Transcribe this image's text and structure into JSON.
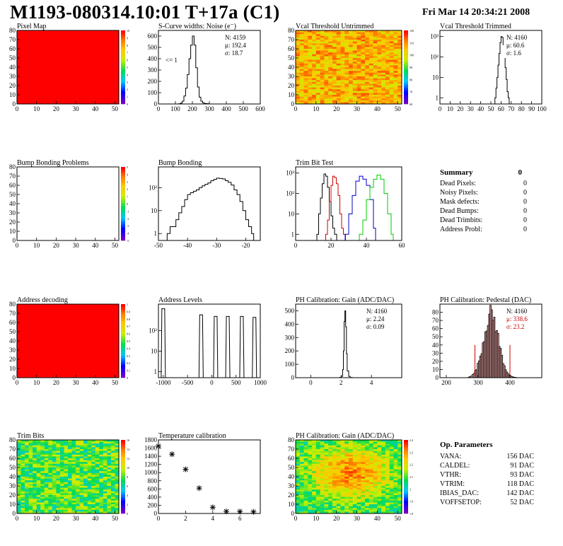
{
  "header": {
    "title": "M1193-080314.10:01 T+17a (C1)",
    "date": "Fri Mar 14 20:34:21 2008"
  },
  "colors": {
    "red": "#ff0000",
    "black": "#000000",
    "trim_red": "#cc0000",
    "trim_blue": "#0000cc",
    "trim_green": "#00cc00",
    "pedestal_fill": "#e0a0a0",
    "pedestal_line": "#cc0000"
  },
  "chart_data": [
    {
      "id": "pixel-map",
      "type": "heatmap",
      "title": "Pixel Map",
      "xlim": [
        0,
        52
      ],
      "ylim": [
        0,
        80
      ],
      "xticks": [
        0,
        10,
        20,
        30,
        40,
        50
      ],
      "yticks": [
        0,
        10,
        20,
        30,
        40,
        50,
        60,
        70,
        80
      ],
      "zticks": [
        "0",
        "1",
        "2",
        "3",
        "4",
        "5",
        "6",
        "7",
        "8",
        "9",
        "10"
      ],
      "fill": "uniform",
      "value": 10
    },
    {
      "id": "noise",
      "type": "line",
      "title": "S-Curve widths: Noise (e⁻)",
      "xlim": [
        0,
        600
      ],
      "ylim": [
        0,
        650
      ],
      "xticks": [
        0,
        100,
        200,
        300,
        400,
        500,
        600
      ],
      "yticks": [
        0,
        100,
        200,
        300,
        400,
        500,
        600
      ],
      "stats": [
        "N: 4159",
        "μ: 192.4",
        "σ: 18.7"
      ],
      "annotation": "<= 1",
      "x": [
        120,
        130,
        140,
        150,
        160,
        170,
        180,
        190,
        200,
        210,
        220,
        230,
        240,
        250,
        260,
        270,
        280,
        290,
        300
      ],
      "y": [
        2,
        8,
        25,
        70,
        140,
        260,
        400,
        520,
        600,
        520,
        320,
        150,
        60,
        25,
        10,
        5,
        3,
        2,
        0
      ]
    },
    {
      "id": "vcal-untrimmed",
      "type": "heatmap",
      "title": "Vcal Threshold Untrimmed",
      "xlim": [
        0,
        52
      ],
      "ylim": [
        0,
        80
      ],
      "xticks": [
        0,
        10,
        20,
        30,
        40,
        50
      ],
      "yticks": [
        0,
        10,
        20,
        30,
        40,
        50,
        60,
        70,
        80
      ],
      "zticks": [
        "60",
        "70",
        "80",
        "90",
        "100",
        "110",
        "120"
      ],
      "fill": "noise",
      "palette": "orange"
    },
    {
      "id": "vcal-trimmed",
      "type": "line",
      "title": "Vcal Threshold Trimmed",
      "xlim": [
        0,
        100
      ],
      "ylog": true,
      "ylim": [
        0.5,
        2000
      ],
      "xticks": [
        0,
        10,
        20,
        30,
        40,
        50,
        60,
        70,
        80,
        90,
        100
      ],
      "yticks": [
        "1",
        "10",
        "10²",
        "10³"
      ],
      "stats": [
        "N: 4160",
        "μ: 60.6",
        "σ:  1.6"
      ],
      "x": [
        54,
        55,
        56,
        57,
        58,
        59,
        60,
        61,
        62,
        63,
        64,
        65,
        66,
        67,
        68
      ],
      "y": [
        1,
        3,
        10,
        40,
        150,
        500,
        1000,
        900,
        400,
        120,
        30,
        8,
        2,
        1,
        0
      ]
    },
    {
      "id": "bump-problems",
      "type": "heatmap",
      "title": "Bump Bonding Problems",
      "xlim": [
        0,
        52
      ],
      "ylim": [
        0,
        80
      ],
      "xticks": [
        0,
        10,
        20,
        30,
        40,
        50
      ],
      "yticks": [
        0,
        10,
        20,
        30,
        40,
        50,
        60,
        70,
        80
      ],
      "zticks": [
        "-5",
        "-4",
        "-3",
        "-2",
        "-1",
        "0",
        "1",
        "2",
        "3",
        "4",
        "5"
      ],
      "fill": "empty"
    },
    {
      "id": "bump-bonding",
      "type": "line",
      "title": "Bump Bonding",
      "xlim": [
        -50,
        -15
      ],
      "ylog": true,
      "ylim": [
        0.5,
        800
      ],
      "xticks": [
        -50,
        -40,
        -30,
        -20
      ],
      "yticks": [
        "1",
        "10",
        "10²"
      ],
      "x": [
        -47,
        -46,
        -45,
        -44,
        -43,
        -42,
        -41,
        -40,
        -39,
        -38,
        -37,
        -36,
        -35,
        -34,
        -33,
        -32,
        -31,
        -30,
        -29,
        -28,
        -27,
        -26,
        -25,
        -24,
        -23,
        -22,
        -21,
        -20,
        -19,
        -18
      ],
      "y": [
        1,
        2,
        2,
        4,
        8,
        15,
        30,
        50,
        60,
        70,
        80,
        100,
        120,
        140,
        160,
        200,
        230,
        260,
        250,
        240,
        200,
        170,
        130,
        80,
        50,
        25,
        10,
        4,
        2,
        1
      ]
    },
    {
      "id": "trim-bit-test",
      "type": "line",
      "title": "Trim Bit Test",
      "xlim": [
        0,
        60
      ],
      "ylog": true,
      "ylim": [
        0.5,
        2000
      ],
      "xticks": [
        0,
        20,
        40,
        60
      ],
      "yticks": [
        "1",
        "10",
        "10²",
        "10³"
      ],
      "series": [
        {
          "color": "#000000",
          "x": [
            12,
            13,
            14,
            15,
            16,
            17,
            18,
            19,
            20,
            21,
            22
          ],
          "y": [
            1,
            10,
            60,
            300,
            900,
            700,
            200,
            40,
            8,
            2,
            1
          ]
        },
        {
          "color": "#cc0000",
          "x": [
            17,
            18,
            19,
            20,
            21,
            22,
            23,
            24,
            25,
            26,
            27
          ],
          "y": [
            1,
            5,
            40,
            250,
            700,
            600,
            300,
            80,
            10,
            2,
            1
          ]
        },
        {
          "color": "#0000cc",
          "x": [
            28,
            30,
            32,
            34,
            36,
            38,
            40,
            42,
            44
          ],
          "y": [
            1,
            10,
            80,
            400,
            700,
            500,
            250,
            50,
            2
          ]
        },
        {
          "color": "#00cc00",
          "x": [
            36,
            38,
            40,
            42,
            44,
            46,
            48,
            50,
            52,
            54
          ],
          "y": [
            1,
            5,
            50,
            200,
            500,
            800,
            500,
            100,
            10,
            1
          ]
        }
      ]
    },
    {
      "id": "address-decoding",
      "type": "heatmap",
      "title": "Address decoding",
      "xlim": [
        0,
        52
      ],
      "ylim": [
        0,
        80
      ],
      "xticks": [
        0,
        10,
        20,
        30,
        40,
        50
      ],
      "yticks": [
        0,
        10,
        20,
        30,
        40,
        50,
        60,
        70,
        80
      ],
      "zticks": [
        "0",
        "0.1",
        "0.2",
        "0.3",
        "0.4",
        "0.5",
        "0.6",
        "0.7",
        "0.8",
        "0.9",
        "1"
      ],
      "fill": "uniform",
      "value": 1
    },
    {
      "id": "address-levels",
      "type": "line",
      "title": "Address Levels",
      "xlim": [
        -1100,
        1000
      ],
      "ylog": true,
      "ylim": [
        0.5,
        2000
      ],
      "xticks": [
        -1000,
        -500,
        0,
        500,
        1000
      ],
      "yticks": [
        "1",
        "10",
        "10²"
      ],
      "peaks": [
        -1000,
        -220,
        80,
        330,
        620,
        880
      ],
      "peak_heights": [
        1200,
        600,
        500,
        500,
        500,
        450
      ]
    },
    {
      "id": "ph-gain",
      "type": "line",
      "title": "PH Calibration: Gain (ADC/DAC)",
      "xlim": [
        -1,
        6
      ],
      "ylim": [
        0,
        550
      ],
      "xticks": [
        0,
        2,
        4
      ],
      "yticks": [
        0,
        100,
        200,
        300,
        400,
        500
      ],
      "stats": [
        "N: 4160",
        "μ: 2.24",
        "σ: 0.09"
      ],
      "x": [
        1.9,
        2.0,
        2.1,
        2.15,
        2.2,
        2.25,
        2.3,
        2.35,
        2.4,
        2.5,
        2.6
      ],
      "y": [
        2,
        10,
        60,
        200,
        420,
        500,
        380,
        180,
        50,
        10,
        1
      ]
    },
    {
      "id": "ph-pedestal",
      "type": "bar",
      "title": "PH Calibration: Pedestal (DAC)",
      "xlim": [
        180,
        500
      ],
      "ylim": [
        0,
        90
      ],
      "xticks": [
        200,
        300,
        400
      ],
      "yticks": [
        0,
        10,
        20,
        30,
        40,
        50,
        60,
        70,
        80
      ],
      "stats": [
        "N: 4160",
        "μ: 338.6",
        "σ: 23.2"
      ],
      "mean": 338.6,
      "sigma": 23.2,
      "cut_lines": [
        290,
        400
      ]
    },
    {
      "id": "trim-bits",
      "type": "heatmap",
      "title": "Trim Bits",
      "xlim": [
        0,
        52
      ],
      "ylim": [
        0,
        80
      ],
      "xticks": [
        0,
        10,
        20,
        30,
        40,
        50
      ],
      "yticks": [
        0,
        10,
        20,
        30,
        40,
        50,
        60,
        70,
        80
      ],
      "zticks": [
        "0",
        "2",
        "4",
        "6",
        "8",
        "10",
        "12",
        "14",
        "16"
      ],
      "fill": "noise",
      "palette": "green"
    },
    {
      "id": "temp-calibration",
      "type": "scatter",
      "title": "Temperature calibration",
      "xlim": [
        0,
        7.5
      ],
      "ylim": [
        0,
        1800
      ],
      "xticks": [
        0,
        2,
        4,
        6
      ],
      "yticks": [
        0,
        200,
        400,
        600,
        800,
        1000,
        1200,
        1400,
        1600,
        1800
      ],
      "x": [
        0,
        1,
        2,
        3,
        4,
        5,
        6,
        7
      ],
      "y": [
        1650,
        1450,
        1080,
        620,
        150,
        50,
        45,
        40
      ]
    },
    {
      "id": "ph-gain-map",
      "type": "heatmap",
      "title": "PH Calibration: Gain (ADC/DAC)",
      "xlim": [
        0,
        52
      ],
      "ylim": [
        0,
        80
      ],
      "xticks": [
        0,
        10,
        20,
        30,
        40,
        50
      ],
      "yticks": [
        0,
        10,
        20,
        30,
        40,
        50,
        60,
        70,
        80
      ],
      "zticks": [
        "1.8",
        "1.9",
        "2",
        "2.1",
        "2.2",
        "2.3",
        "2.4"
      ],
      "fill": "noise",
      "palette": "center"
    }
  ],
  "summary": {
    "title": "Summary",
    "total": "0",
    "rows": [
      {
        "label": "Dead Pixels:",
        "value": "0"
      },
      {
        "label": "Noisy Pixels:",
        "value": "0"
      },
      {
        "label": "Mask defects:",
        "value": "0"
      },
      {
        "label": "Dead Bumps:",
        "value": "0"
      },
      {
        "label": "Dead Trimbits:",
        "value": "0"
      },
      {
        "label": "Address Probl:",
        "value": "0"
      }
    ]
  },
  "op_parameters": {
    "title": "Op. Parameters",
    "rows": [
      {
        "label": "VANA:",
        "value": "156 DAC"
      },
      {
        "label": "CALDEL:",
        "value": "91 DAC"
      },
      {
        "label": "VTHR:",
        "value": "93 DAC"
      },
      {
        "label": "VTRIM:",
        "value": "118 DAC"
      },
      {
        "label": "IBIAS_DAC:",
        "value": "142 DAC"
      },
      {
        "label": "VOFFSETOP:",
        "value": "52 DAC"
      }
    ]
  }
}
